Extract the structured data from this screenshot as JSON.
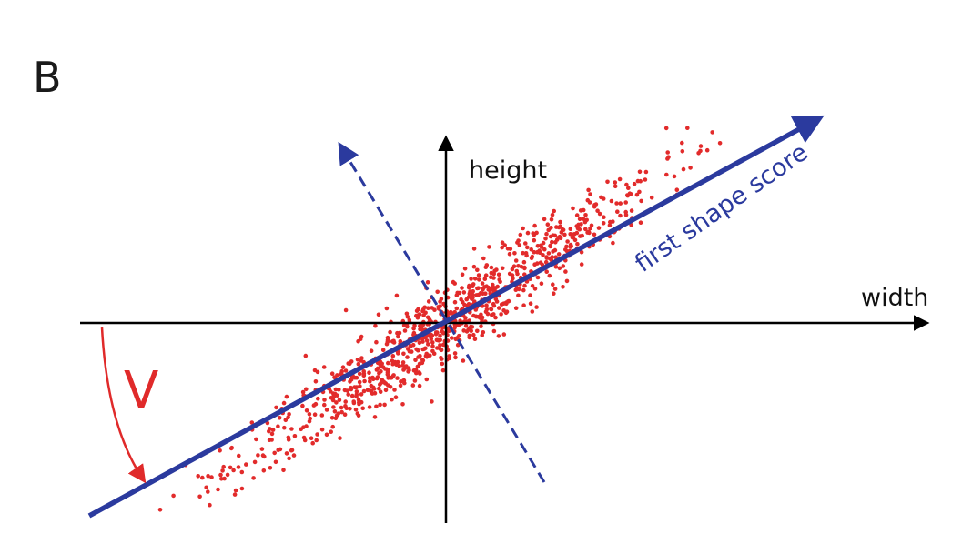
{
  "panel_letter": "B",
  "axes": {
    "x_label": "width",
    "y_label": "height"
  },
  "principal_axis": {
    "label": "first shape score",
    "direction_deg": 35
  },
  "angle": {
    "label": "V"
  },
  "scatter": {
    "point_count": 950,
    "spread_along": 300,
    "spread_across": 20
  },
  "colors": {
    "axes": "#000000",
    "principal": "#2b3a9e",
    "points": "#e22b2b",
    "angle": "#e02a2a",
    "text": "#111111"
  }
}
